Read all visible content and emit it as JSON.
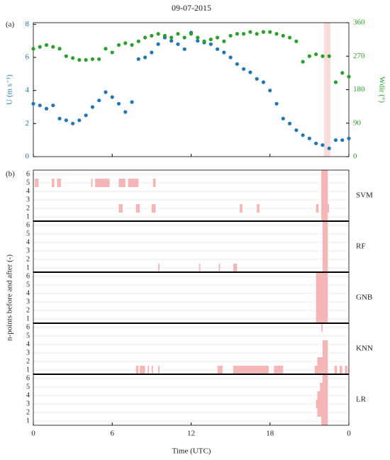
{
  "chart_data": [
    {
      "type": "scatter",
      "title": "09-07-2015",
      "panel_label": "(a)",
      "ylabel": "U (m s⁻¹)",
      "y2label": "Wdir (°)",
      "x": [
        0,
        0.5,
        1,
        1.5,
        2,
        2.5,
        3,
        3.5,
        4,
        4.5,
        5,
        5.5,
        6,
        6.5,
        7,
        7.5,
        8,
        8.5,
        9,
        9.5,
        10,
        10.5,
        11,
        11.5,
        12,
        12.5,
        13,
        13.5,
        14,
        14.5,
        15,
        15.5,
        16,
        16.5,
        17,
        17.5,
        18,
        18.5,
        19,
        19.5,
        20,
        20.5,
        21,
        21.5,
        22,
        22.5,
        23,
        23.5,
        24
      ],
      "series": [
        {
          "name": "U",
          "color": "#1f77b4",
          "values": [
            3.2,
            3.1,
            2.9,
            3.1,
            2.3,
            2.2,
            2.0,
            2.2,
            2.5,
            3.0,
            3.4,
            3.9,
            3.6,
            3.2,
            2.7,
            3.3,
            5.9,
            6.0,
            6.3,
            6.8,
            7.2,
            7.0,
            6.8,
            6.5,
            7.5,
            7.0,
            6.9,
            6.8,
            6.5,
            6.3,
            6.0,
            5.6,
            5.3,
            5.1,
            4.7,
            4.5,
            4.0,
            3.2,
            2.3,
            2.0,
            1.6,
            1.3,
            1.1,
            0.8,
            0.7,
            0.5,
            1.0,
            1.0,
            1.1
          ]
        },
        {
          "name": "Wdir",
          "color": "#2ca02c",
          "axis": "y2",
          "values": [
            290,
            295,
            300,
            295,
            290,
            270,
            265,
            260,
            260,
            262,
            262,
            290,
            280,
            300,
            305,
            300,
            310,
            320,
            325,
            330,
            325,
            320,
            330,
            320,
            330,
            320,
            310,
            315,
            320,
            310,
            325,
            330,
            330,
            335,
            330,
            335,
            335,
            330,
            325,
            320,
            310,
            255,
            270,
            275,
            270,
            270,
            200,
            225,
            215
          ]
        }
      ],
      "highlight": {
        "xlim": [
          22.1,
          22.6
        ],
        "color": "#f9dcdc"
      },
      "xlim": [
        0,
        24
      ],
      "xticks": [
        0,
        6,
        12,
        18,
        24
      ],
      "ylim": [
        0,
        8.1
      ],
      "yticks": [
        0,
        2,
        4,
        6,
        8
      ],
      "y2lim": [
        0,
        360
      ],
      "y2ticks": [
        0,
        90,
        180,
        270,
        360
      ]
    },
    {
      "type": "raster",
      "panel_label": "(b)",
      "ylabel": "n-points before and after (-)",
      "xlabel": "Time (UTC)",
      "xlim": [
        0,
        24
      ],
      "xticks": [
        0,
        6,
        12,
        18,
        {
          "value": 24,
          "label": "0"
        }
      ],
      "rows": [
        1,
        2,
        3,
        4,
        5,
        6
      ],
      "color": "#f4b6b6",
      "models": [
        {
          "name": "SVM",
          "bars": [
            [
              5,
              0.1,
              0.4
            ],
            [
              5,
              1.4,
              1.6
            ],
            [
              5,
              1.8,
              2.1
            ],
            [
              5,
              4.4,
              4.5
            ],
            [
              5,
              4.7,
              5.8
            ],
            [
              5,
              6.5,
              7.0
            ],
            [
              5,
              7.2,
              8.0
            ],
            [
              5,
              9.1,
              9.3
            ],
            [
              2,
              6.5,
              6.8
            ],
            [
              2,
              7.8,
              8.1
            ],
            [
              2,
              9.0,
              9.3
            ],
            [
              2,
              15.7,
              15.9
            ],
            [
              2,
              17.0,
              17.2
            ],
            [
              2,
              21.5,
              21.7
            ],
            [
              1,
              21.9,
              22.4
            ],
            [
              2,
              21.9,
              22.5
            ],
            [
              3,
              21.9,
              22.4
            ],
            [
              4,
              21.9,
              22.4
            ],
            [
              5,
              21.9,
              22.4
            ],
            [
              6,
              21.9,
              22.4
            ]
          ]
        },
        {
          "name": "RF",
          "bars": [
            [
              1,
              9.5,
              9.6
            ],
            [
              1,
              12.6,
              12.7
            ],
            [
              1,
              14.1,
              14.2
            ],
            [
              1,
              15.2,
              15.5
            ],
            [
              1,
              22.0,
              22.4
            ],
            [
              2,
              22.0,
              22.4
            ],
            [
              3,
              22.0,
              22.4
            ],
            [
              4,
              22.0,
              22.4
            ],
            [
              5,
              22.0,
              22.4
            ],
            [
              6,
              22.0,
              22.4
            ]
          ]
        },
        {
          "name": "GNB",
          "bars": [
            [
              1,
              21.5,
              22.4
            ],
            [
              2,
              21.5,
              22.4
            ],
            [
              3,
              21.5,
              22.4
            ],
            [
              4,
              21.5,
              22.4
            ],
            [
              5,
              21.5,
              22.4
            ],
            [
              6,
              21.5,
              22.4
            ]
          ]
        },
        {
          "name": "KNN",
          "bars": [
            [
              6,
              21.9,
              22.0
            ],
            [
              4,
              22.0,
              22.4
            ],
            [
              3,
              22.0,
              22.4
            ],
            [
              2,
              21.6,
              22.4
            ],
            [
              1,
              7.8,
              8.0
            ],
            [
              1,
              8.1,
              8.5
            ],
            [
              1,
              8.7,
              8.8
            ],
            [
              1,
              9.0,
              9.1
            ],
            [
              1,
              9.5,
              9.6
            ],
            [
              1,
              14.0,
              14.4
            ],
            [
              1,
              15.2,
              17.9
            ],
            [
              1,
              18.3,
              19.0
            ],
            [
              1,
              21.4,
              22.4
            ],
            [
              1,
              22.9,
              23.1
            ],
            [
              1,
              23.3,
              23.5
            ],
            [
              1,
              23.7,
              23.9
            ]
          ]
        },
        {
          "name": "LR",
          "bars": [
            [
              6,
              22.0,
              22.4
            ],
            [
              5,
              21.8,
              22.4
            ],
            [
              4,
              21.6,
              22.4
            ],
            [
              3,
              21.5,
              22.4
            ],
            [
              2,
              21.6,
              22.4
            ],
            [
              1,
              21.9,
              22.4
            ]
          ]
        }
      ]
    }
  ]
}
